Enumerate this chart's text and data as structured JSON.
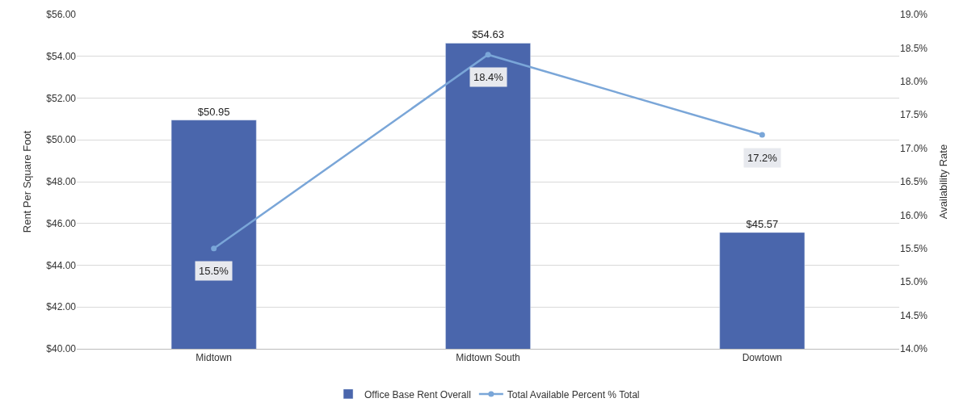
{
  "chart_data": {
    "type": "bar",
    "categories": [
      "Midtown",
      "Midtown South",
      "Dowtown"
    ],
    "ylabel": "Rent Per Square Foot",
    "y2label": "Availability Rate",
    "series": [
      {
        "name": "Office Base Rent Overall",
        "color": "#4a66ac",
        "values": [
          50.95,
          54.63,
          45.57
        ],
        "value_labels": [
          "$50.95",
          "$54.63",
          "$45.57"
        ]
      },
      {
        "name": "Total Available Percent % Total",
        "type": "line",
        "axis": "y2",
        "color": "#7aa6d8",
        "marker": "circle",
        "values": [
          15.5,
          18.4,
          17.2
        ],
        "value_labels": [
          "15.5%",
          "18.4%",
          "17.2%"
        ]
      }
    ],
    "ylim": [
      40,
      56
    ],
    "yticks": [
      {
        "value": 40,
        "label": "$40.00"
      },
      {
        "value": 42,
        "label": "$42.00"
      },
      {
        "value": 44,
        "label": "$44.00"
      },
      {
        "value": 46,
        "label": "$46.00"
      },
      {
        "value": 48,
        "label": "$48.00"
      },
      {
        "value": 50,
        "label": "$50.00"
      },
      {
        "value": 52,
        "label": "$52.00"
      },
      {
        "value": 54,
        "label": "$54.00"
      },
      {
        "value": 56,
        "label": "$56.00"
      }
    ],
    "y2lim": [
      14,
      19
    ],
    "y2ticks": [
      {
        "value": 14,
        "label": "14.0%"
      },
      {
        "value": 14.5,
        "label": "14.5%"
      },
      {
        "value": 15,
        "label": "15.0%"
      },
      {
        "value": 15.5,
        "label": "15.5%"
      },
      {
        "value": 16,
        "label": "16.0%"
      },
      {
        "value": 16.5,
        "label": "16.5%"
      },
      {
        "value": 17,
        "label": "17.0%"
      },
      {
        "value": 17.5,
        "label": "17.5%"
      },
      {
        "value": 18,
        "label": "18.0%"
      },
      {
        "value": 18.5,
        "label": "18.5%"
      },
      {
        "value": 19,
        "label": "19.0%"
      }
    ],
    "grid": "y",
    "legend": "bottom"
  }
}
